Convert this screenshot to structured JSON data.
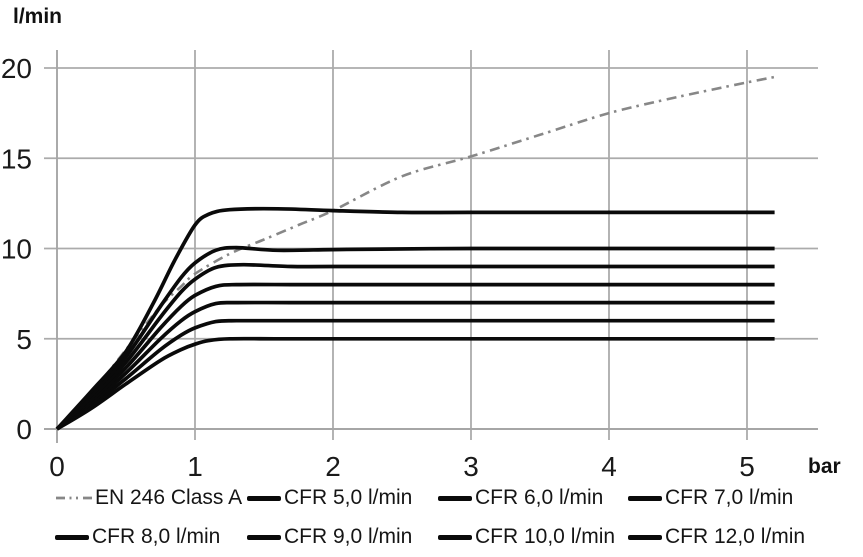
{
  "chart_data": {
    "type": "line",
    "title": "",
    "xlabel": "bar",
    "ylabel": "l/min",
    "xlim": [
      0,
      5.5
    ],
    "ylim": [
      0,
      21
    ],
    "x_ticks": [
      0,
      1,
      2,
      3,
      4,
      5
    ],
    "y_ticks": [
      0,
      5,
      10,
      15,
      20
    ],
    "grid": true,
    "legend_position": "bottom",
    "colors": {
      "grid": "#ababab",
      "axis": "#a6a6a6",
      "cfr_line": "#0a0a0a",
      "en246_line": "#878787",
      "tick_text": "#1a1a1a"
    },
    "series": [
      {
        "name": "EN 246 Class A",
        "style": "dash-dot",
        "color": "#878787",
        "width": 2.6,
        "points": [
          [
            0,
            0
          ],
          [
            0.25,
            2.0
          ],
          [
            0.5,
            4.4
          ],
          [
            0.75,
            6.8
          ],
          [
            0.9,
            7.9
          ],
          [
            1,
            8.6
          ],
          [
            1.25,
            9.7
          ],
          [
            1.5,
            10.5
          ],
          [
            1.75,
            11.3
          ],
          [
            2,
            12.1
          ],
          [
            2.5,
            14.0
          ],
          [
            3,
            15.1
          ],
          [
            3.5,
            16.3
          ],
          [
            4,
            17.5
          ],
          [
            4.5,
            18.4
          ],
          [
            5,
            19.2
          ],
          [
            5.2,
            19.5
          ]
        ]
      },
      {
        "name": "CFR 5,0 l/min",
        "style": "solid",
        "color": "#0a0a0a",
        "width": 3.7,
        "points": [
          [
            0,
            0
          ],
          [
            0.25,
            1.15
          ],
          [
            0.5,
            2.5
          ],
          [
            0.75,
            3.8
          ],
          [
            0.9,
            4.4
          ],
          [
            1,
            4.7
          ],
          [
            1.1,
            4.9
          ],
          [
            1.25,
            5
          ],
          [
            1.6,
            5
          ],
          [
            2,
            5
          ],
          [
            3,
            5
          ],
          [
            4,
            5
          ],
          [
            5.2,
            5
          ]
        ]
      },
      {
        "name": "CFR 6,0 l/min",
        "style": "solid",
        "color": "#0a0a0a",
        "width": 3.7,
        "points": [
          [
            0,
            0
          ],
          [
            0.25,
            1.3
          ],
          [
            0.5,
            2.8
          ],
          [
            0.75,
            4.4
          ],
          [
            0.9,
            5.2
          ],
          [
            1,
            5.6
          ],
          [
            1.15,
            5.95
          ],
          [
            1.3,
            6
          ],
          [
            1.7,
            6
          ],
          [
            2,
            6
          ],
          [
            3,
            6
          ],
          [
            4,
            6
          ],
          [
            5.2,
            6
          ]
        ]
      },
      {
        "name": "CFR 7,0 l/min",
        "style": "solid",
        "color": "#0a0a0a",
        "width": 3.7,
        "points": [
          [
            0,
            0
          ],
          [
            0.25,
            1.45
          ],
          [
            0.5,
            3.1
          ],
          [
            0.75,
            5.0
          ],
          [
            0.9,
            6.0
          ],
          [
            1,
            6.5
          ],
          [
            1.15,
            6.95
          ],
          [
            1.3,
            7
          ],
          [
            1.7,
            7
          ],
          [
            2,
            7
          ],
          [
            3,
            7
          ],
          [
            4,
            7
          ],
          [
            5.2,
            7
          ]
        ]
      },
      {
        "name": "CFR 8,0 l/min",
        "style": "solid",
        "color": "#0a0a0a",
        "width": 3.7,
        "points": [
          [
            0,
            0
          ],
          [
            0.25,
            1.6
          ],
          [
            0.5,
            3.4
          ],
          [
            0.75,
            5.6
          ],
          [
            0.9,
            6.8
          ],
          [
            1,
            7.4
          ],
          [
            1.15,
            7.9
          ],
          [
            1.3,
            8
          ],
          [
            1.7,
            8
          ],
          [
            2,
            8
          ],
          [
            3,
            8
          ],
          [
            4,
            8
          ],
          [
            5.2,
            8
          ]
        ]
      },
      {
        "name": "CFR 9,0 l/min",
        "style": "solid",
        "color": "#0a0a0a",
        "width": 3.7,
        "points": [
          [
            0,
            0
          ],
          [
            0.25,
            1.75
          ],
          [
            0.5,
            3.7
          ],
          [
            0.75,
            6.2
          ],
          [
            0.9,
            7.6
          ],
          [
            1,
            8.3
          ],
          [
            1.15,
            8.95
          ],
          [
            1.35,
            9.1
          ],
          [
            1.7,
            9
          ],
          [
            2,
            9
          ],
          [
            3,
            9
          ],
          [
            4,
            9
          ],
          [
            5.2,
            9
          ]
        ]
      },
      {
        "name": "CFR 10,0 l/min",
        "style": "solid",
        "color": "#0a0a0a",
        "width": 3.7,
        "points": [
          [
            0,
            0
          ],
          [
            0.25,
            1.9
          ],
          [
            0.5,
            4.0
          ],
          [
            0.75,
            6.8
          ],
          [
            0.9,
            8.4
          ],
          [
            1,
            9.2
          ],
          [
            1.15,
            9.9
          ],
          [
            1.3,
            10.05
          ],
          [
            1.6,
            9.9
          ],
          [
            2.1,
            9.95
          ],
          [
            3,
            10
          ],
          [
            4,
            10
          ],
          [
            5.2,
            10
          ]
        ]
      },
      {
        "name": "CFR 12,0 l/min",
        "style": "solid",
        "color": "#0a0a0a",
        "width": 3.7,
        "points": [
          [
            0,
            0
          ],
          [
            0.25,
            2.1
          ],
          [
            0.5,
            4.3
          ],
          [
            0.7,
            7.0
          ],
          [
            0.85,
            9.3
          ],
          [
            1,
            11.3
          ],
          [
            1.1,
            11.9
          ],
          [
            1.25,
            12.15
          ],
          [
            1.6,
            12.2
          ],
          [
            2,
            12.1
          ],
          [
            2.5,
            12.0
          ],
          [
            3,
            12
          ],
          [
            4,
            12
          ],
          [
            5.2,
            12
          ]
        ]
      }
    ]
  },
  "legend": {
    "items_per_row": 4,
    "labels": [
      "EN 246 Class A",
      "CFR 5,0 l/min",
      "CFR 6,0 l/min",
      "CFR 7,0 l/min",
      "CFR 8,0 l/min",
      "CFR 9,0 l/min",
      "CFR 10,0 l/min",
      "CFR 12,0 l/min"
    ]
  }
}
